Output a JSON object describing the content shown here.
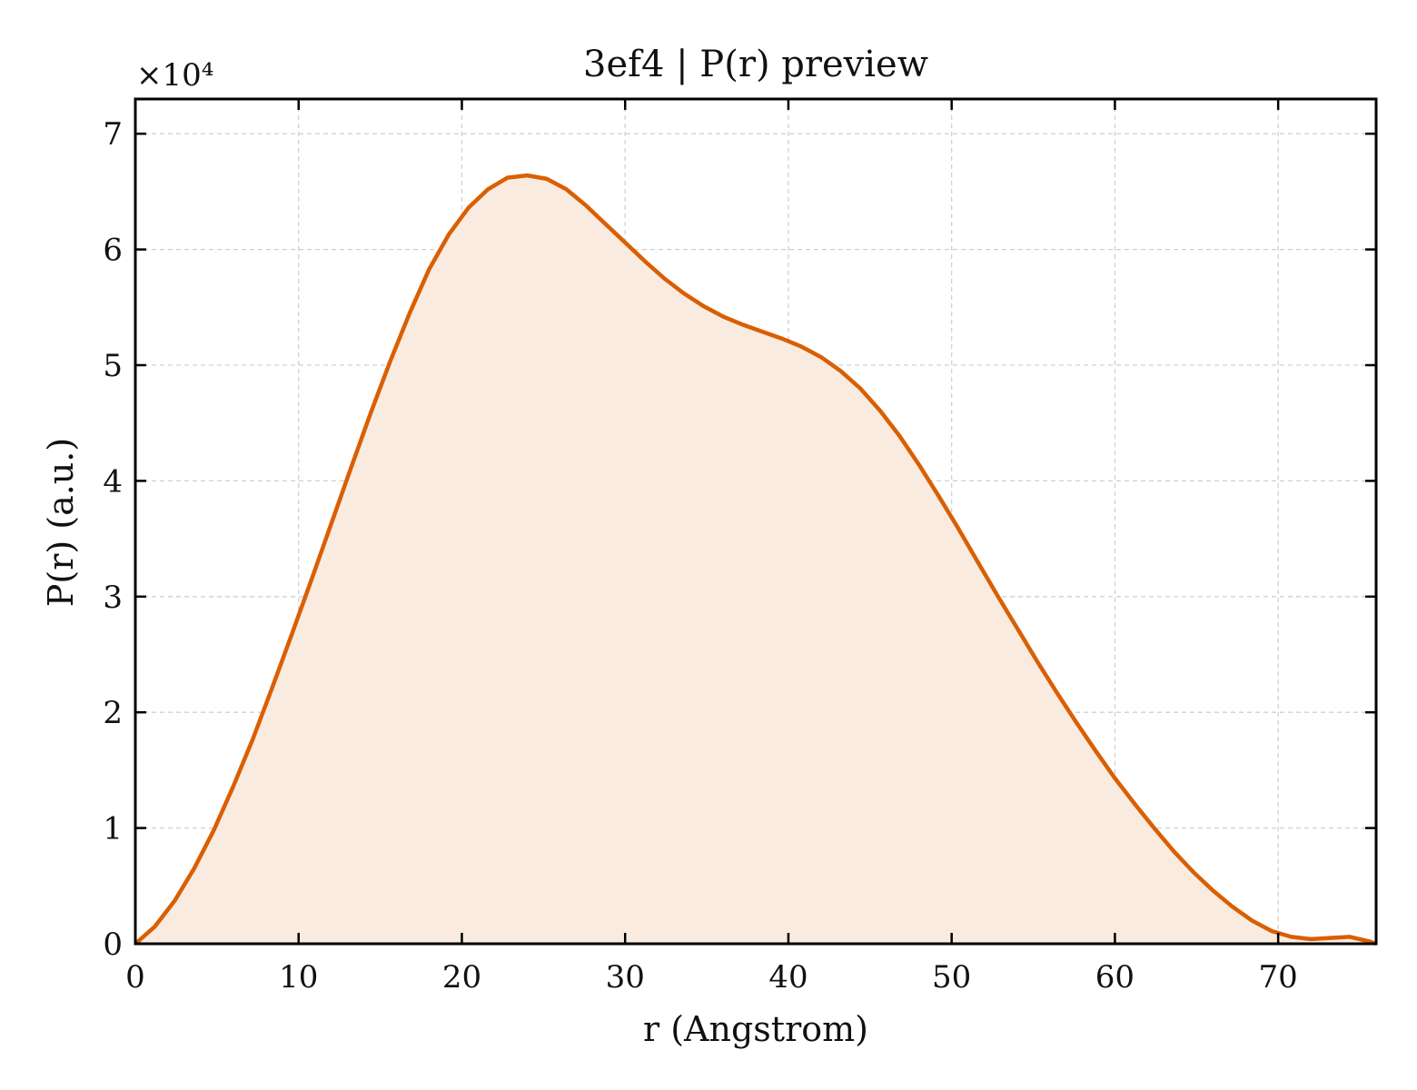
{
  "chart_data": {
    "type": "area",
    "title": "3ef4 | P(r) preview",
    "xlabel": "r (Angstrom)",
    "ylabel": "P(r) (a.u.)",
    "y_multiplier_label": "×10⁴",
    "xlim": [
      0,
      76
    ],
    "ylim": [
      0,
      7.3
    ],
    "y_scale_factor": 10000,
    "x_ticks": [
      0,
      10,
      20,
      30,
      40,
      50,
      60,
      70
    ],
    "y_ticks": [
      0,
      1,
      2,
      3,
      4,
      5,
      6,
      7
    ],
    "grid": true,
    "colors": {
      "line": "#d95f02",
      "fill": "#f9ebe0",
      "grid": "#d0d0d0",
      "axes": "#000000"
    },
    "series": [
      {
        "x": [
          0,
          1.2,
          2.4,
          3.6,
          4.8,
          6.0,
          7.2,
          8.4,
          9.6,
          10.8,
          12.0,
          13.2,
          14.4,
          15.6,
          16.8,
          18.0,
          19.2,
          20.4,
          21.6,
          22.8,
          24.0,
          25.2,
          26.4,
          27.6,
          28.8,
          30.0,
          31.2,
          32.4,
          33.6,
          34.8,
          36.0,
          37.2,
          38.4,
          39.6,
          40.8,
          42.0,
          43.2,
          44.4,
          45.6,
          46.8,
          48.0,
          49.2,
          50.4,
          51.6,
          52.8,
          54.0,
          55.2,
          56.4,
          57.6,
          58.8,
          60.0,
          61.2,
          62.4,
          63.6,
          64.8,
          66.0,
          67.2,
          68.4,
          69.6,
          70.8,
          72.0,
          73.2,
          74.4,
          75.6,
          76.0
        ],
        "values": [
          0,
          0.15,
          0.37,
          0.65,
          0.98,
          1.36,
          1.77,
          2.22,
          2.68,
          3.15,
          3.63,
          4.11,
          4.58,
          5.03,
          5.45,
          5.83,
          6.13,
          6.36,
          6.52,
          6.62,
          6.64,
          6.61,
          6.52,
          6.38,
          6.22,
          6.06,
          5.9,
          5.75,
          5.62,
          5.51,
          5.42,
          5.35,
          5.29,
          5.23,
          5.16,
          5.07,
          4.95,
          4.8,
          4.61,
          4.39,
          4.14,
          3.87,
          3.59,
          3.3,
          3.01,
          2.73,
          2.45,
          2.18,
          1.92,
          1.67,
          1.43,
          1.21,
          1.0,
          0.8,
          0.62,
          0.46,
          0.32,
          0.2,
          0.11,
          0.06,
          0.04,
          0.05,
          0.06,
          0.02,
          0
        ]
      }
    ]
  }
}
